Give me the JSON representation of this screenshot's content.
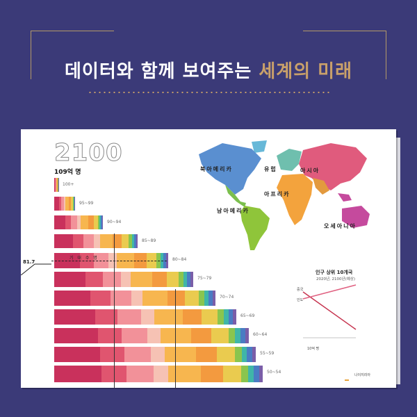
{
  "header": {
    "title_main": "데이터와 함께 보여주는",
    "title_accent": "세계의 미래"
  },
  "colors": {
    "background": "#3b3a78",
    "gold": "#b49a67"
  },
  "infographic": {
    "year": "2100",
    "population": "109억 명",
    "life_expectancy_label": "기 대 수 명",
    "life_expectancy_value": "81.7",
    "age_groups": [
      "100+",
      "95~99",
      "90~94",
      "85~89",
      "80~84",
      "75~79",
      "70~74",
      "65~69",
      "60~64",
      "55~59",
      "50~54"
    ],
    "regions": [
      "북아메리카",
      "유럽",
      "아시아",
      "아프리카",
      "남아메리카",
      "오세아니아"
    ]
  },
  "ranking": {
    "title": "인구 상위 10개국",
    "subtitle": "2020년, 2100년(예상)",
    "countries": [
      "중국",
      "인도"
    ],
    "scale_label": "10억 명",
    "footnote": "나이지리아"
  }
}
